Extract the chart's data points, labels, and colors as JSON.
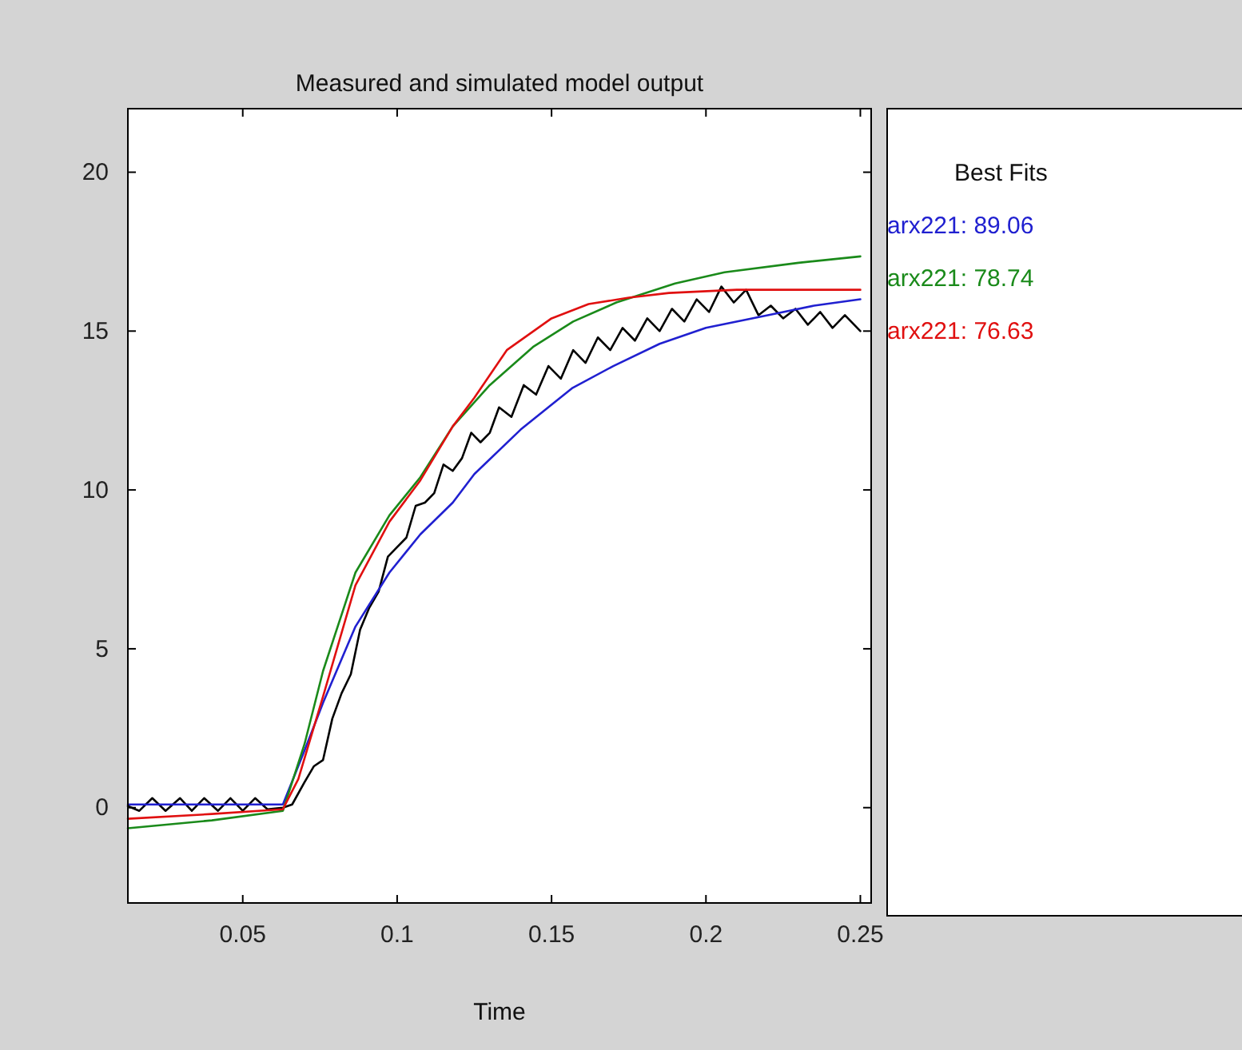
{
  "chart_data": {
    "type": "line",
    "title": "Measured and simulated model output",
    "xlabel": "Time",
    "legend_title": "Best Fits",
    "legend": "right",
    "grid": false,
    "marker": "none",
    "line_style": "solid",
    "xlim": [
      0.0128,
      0.2535
    ],
    "xticks": [
      0.05,
      0.1,
      0.15,
      0.2,
      0.25
    ],
    "ylim": [
      -3,
      22
    ],
    "yticks": [
      0,
      5,
      10,
      15,
      20
    ],
    "series": [
      {
        "color": "#000000",
        "x": [
          0.0128,
          0.0165,
          0.0207,
          0.025,
          0.0297,
          0.0335,
          0.0375,
          0.042,
          0.046,
          0.05,
          0.054,
          0.058,
          0.063,
          0.066,
          0.07,
          0.073,
          0.076,
          0.079,
          0.082,
          0.085,
          0.088,
          0.091,
          0.094,
          0.097,
          0.1,
          0.103,
          0.106,
          0.109,
          0.112,
          0.115,
          0.118,
          0.121,
          0.124,
          0.127,
          0.13,
          0.133,
          0.137,
          0.141,
          0.145,
          0.149,
          0.153,
          0.157,
          0.161,
          0.165,
          0.169,
          0.173,
          0.177,
          0.181,
          0.185,
          0.189,
          0.193,
          0.197,
          0.201,
          0.205,
          0.209,
          0.213,
          0.217,
          0.221,
          0.225,
          0.229,
          0.233,
          0.237,
          0.241,
          0.245,
          0.25
        ],
        "values": [
          0.05,
          -0.1,
          0.3,
          -0.1,
          0.3,
          -0.1,
          0.3,
          -0.1,
          0.3,
          -0.1,
          0.3,
          -0.05,
          0.0,
          0.1,
          0.8,
          1.3,
          1.5,
          2.8,
          3.6,
          4.2,
          5.6,
          6.3,
          6.8,
          7.9,
          8.2,
          8.5,
          9.5,
          9.6,
          9.9,
          10.8,
          10.6,
          11.0,
          11.8,
          11.5,
          11.8,
          12.6,
          12.3,
          13.3,
          13.0,
          13.9,
          13.5,
          14.4,
          14.0,
          14.8,
          14.4,
          15.1,
          14.7,
          15.4,
          15.0,
          15.7,
          15.3,
          16.0,
          15.6,
          16.4,
          15.9,
          16.3,
          15.5,
          15.8,
          15.4,
          15.7,
          15.2,
          15.6,
          15.1,
          15.5,
          15.0
        ]
      },
      {
        "name": "arx221: 89.06",
        "color": "#2020d0",
        "x": [
          0.0128,
          0.063,
          0.07,
          0.076,
          0.0865,
          0.0975,
          0.1075,
          0.118,
          0.125,
          0.14,
          0.1566,
          0.17,
          0.185,
          0.2,
          0.22,
          0.235,
          0.25
        ],
        "values": [
          0.1,
          0.1,
          1.8,
          3.3,
          5.7,
          7.4,
          8.6,
          9.6,
          10.5,
          11.9,
          13.2,
          13.9,
          14.6,
          15.1,
          15.5,
          15.8,
          16.0
        ]
      },
      {
        "name": "arx221: 78.74",
        "color": "#1a8a1a",
        "x": [
          0.0128,
          0.04,
          0.063,
          0.07,
          0.076,
          0.0865,
          0.0975,
          0.1075,
          0.118,
          0.13,
          0.144,
          0.157,
          0.171,
          0.19,
          0.206,
          0.23,
          0.25
        ],
        "values": [
          -0.65,
          -0.4,
          -0.1,
          2.0,
          4.3,
          7.4,
          9.2,
          10.4,
          12.0,
          13.3,
          14.5,
          15.3,
          15.9,
          16.5,
          16.85,
          17.15,
          17.35
        ]
      },
      {
        "name": "arx221: 76.63",
        "color": "#e01010",
        "x": [
          0.0128,
          0.04,
          0.063,
          0.068,
          0.076,
          0.0865,
          0.0975,
          0.1075,
          0.118,
          0.125,
          0.1355,
          0.15,
          0.162,
          0.175,
          0.188,
          0.21,
          0.25
        ],
        "values": [
          -0.35,
          -0.2,
          -0.05,
          0.9,
          3.5,
          7.0,
          9.0,
          10.3,
          12.0,
          12.9,
          14.4,
          15.4,
          15.85,
          16.05,
          16.2,
          16.3,
          16.3
        ]
      }
    ]
  }
}
